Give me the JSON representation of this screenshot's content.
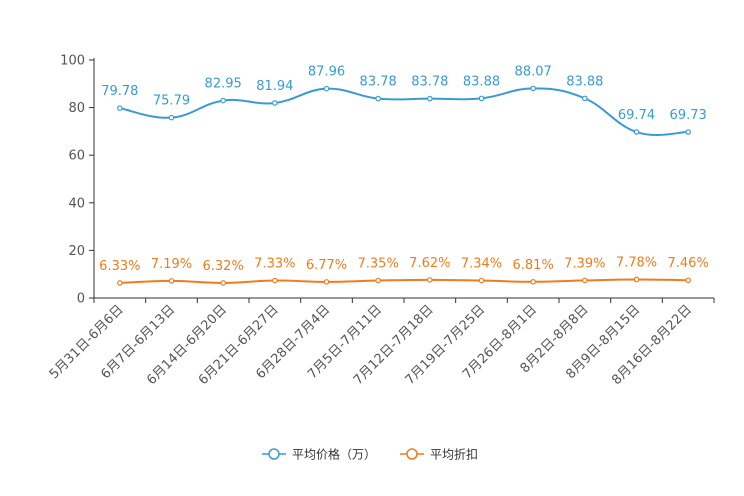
{
  "chart_data": {
    "type": "line",
    "title": "",
    "xlabel": "",
    "ylabel": "",
    "ylim": [
      0,
      100
    ],
    "yticks": [
      "0",
      "20",
      "40",
      "60",
      "80",
      "100"
    ],
    "categories": [
      "5月31日-6月6日",
      "6月7日-6月13日",
      "6月14日-6月20日",
      "6月21日-6月27日",
      "6月28日-7月4日",
      "7月5日-7月11日",
      "7月12日-7月18日",
      "7月19日-7月25日",
      "7月26日-8月1日",
      "8月2日-8月8日",
      "8月9日-8月15日",
      "8月16日-8月22日"
    ],
    "series": [
      {
        "name": "平均价格（万）",
        "color": "#3a9bd0",
        "values": [
          79.78,
          75.79,
          82.95,
          81.94,
          87.96,
          83.78,
          83.78,
          83.88,
          88.07,
          83.88,
          69.74,
          69.73
        ],
        "labels": [
          "79.78",
          "75.79",
          "82.95",
          "81.94",
          "87.96",
          "83.78",
          "83.78",
          "83.88",
          "88.07",
          "83.88",
          "69.74",
          "69.73"
        ]
      },
      {
        "name": "平均折扣",
        "color": "#f07c1e",
        "values": [
          6.33,
          7.19,
          6.32,
          7.33,
          6.77,
          7.35,
          7.62,
          7.34,
          6.81,
          7.39,
          7.78,
          7.46
        ],
        "labels": [
          "6.33%",
          "7.19%",
          "6.32%",
          "7.33%",
          "6.77%",
          "7.35%",
          "7.62%",
          "7.34%",
          "6.81%",
          "7.39%",
          "7.78%",
          "7.46%"
        ]
      }
    ],
    "legend": {
      "position": "bottom"
    },
    "grid": false
  }
}
